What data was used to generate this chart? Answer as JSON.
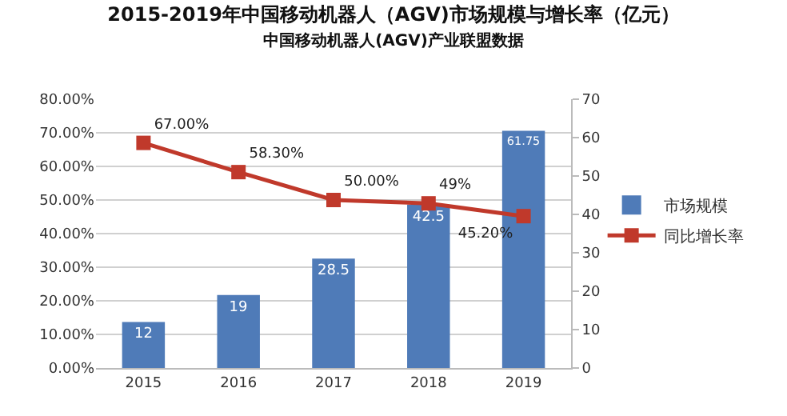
{
  "chart_data": {
    "type": "bar",
    "title": "2015-2019年中国移动机器人（AGV)市场规模与增长率（亿元）",
    "subtitle": "中国移动机器人(AGV)产业联盟数据",
    "categories": [
      "2015",
      "2016",
      "2017",
      "2018",
      "2019"
    ],
    "series": [
      {
        "name": "市场规模",
        "axis": "y2",
        "color": "#4f7bb8",
        "values": [
          12,
          19,
          28.5,
          42.5,
          61.75
        ],
        "data_labels": true
      },
      {
        "name": "同比增长率",
        "type": "line",
        "axis": "y",
        "color": "#c0392b",
        "values": [
          67,
          58.3,
          50,
          49,
          45.2
        ],
        "value_labels": [
          "67.00%",
          "58.30%",
          "50.00%",
          "49%",
          "45.20%"
        ],
        "marker": "square"
      }
    ],
    "ylim": [
      0,
      80
    ],
    "yticks": [
      {
        "value": 0,
        "label": "0.00%"
      },
      {
        "value": 10,
        "label": "10.00%"
      },
      {
        "value": 20,
        "label": "20.00%"
      },
      {
        "value": 30,
        "label": "30.00%"
      },
      {
        "value": 40,
        "label": "40.00%"
      },
      {
        "value": 50,
        "label": "50.00%"
      },
      {
        "value": 60,
        "label": "60.00%"
      },
      {
        "value": 70,
        "label": "70.00%"
      },
      {
        "value": 80,
        "label": "80.00%"
      }
    ],
    "y2lim": [
      0,
      70
    ],
    "y2ticks": [
      0,
      10,
      20,
      30,
      40,
      50,
      60,
      70
    ],
    "grid": "y",
    "legend": "right"
  }
}
